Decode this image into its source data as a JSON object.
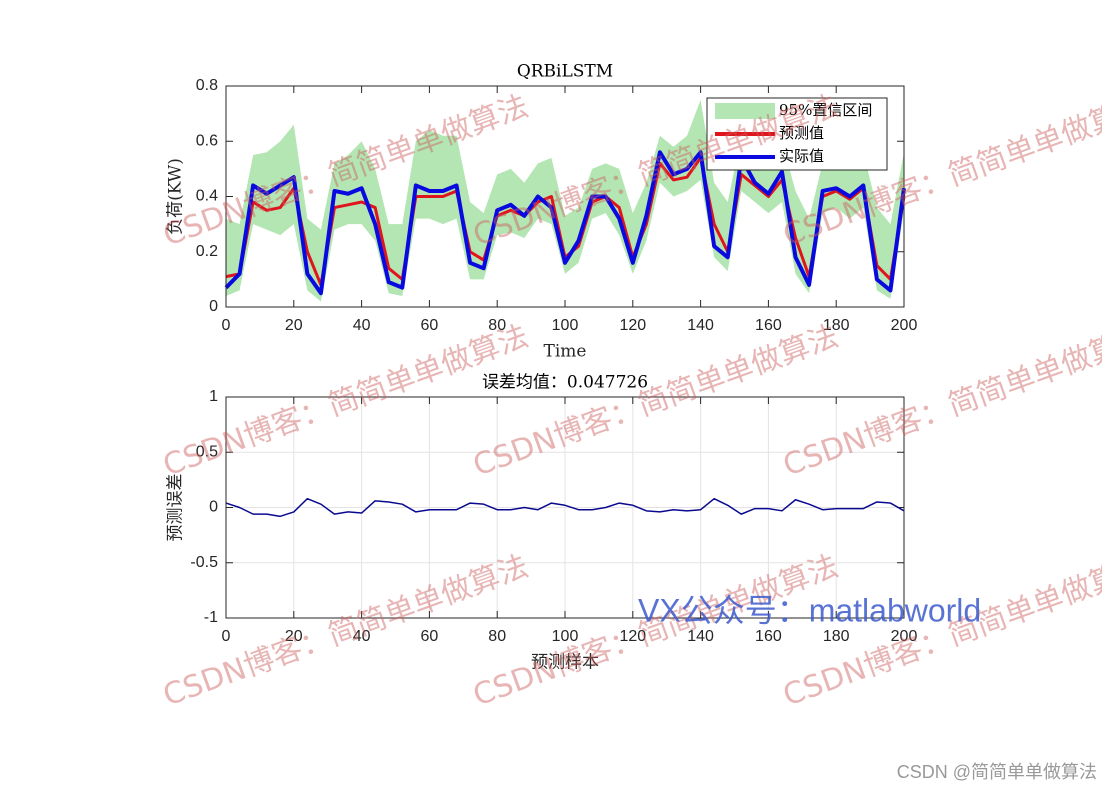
{
  "watermarks": {
    "blog": "CSDN博客：简简单单做算法",
    "wechat": "VX公众号：matlabworld",
    "footer": "CSDN @简简单单做算法"
  },
  "chart_data": [
    {
      "type": "line",
      "title": "QRBiLSTM",
      "xlabel": "Time",
      "ylabel": "负荷(KW)",
      "x": [
        0,
        4,
        8,
        12,
        16,
        20,
        24,
        28,
        32,
        36,
        40,
        44,
        48,
        52,
        56,
        60,
        64,
        68,
        72,
        76,
        80,
        84,
        88,
        92,
        96,
        100,
        104,
        108,
        112,
        116,
        120,
        124,
        128,
        132,
        136,
        140,
        144,
        148,
        152,
        156,
        160,
        164,
        168,
        172,
        176,
        180,
        184,
        188,
        192,
        196,
        200
      ],
      "xlim": [
        0,
        200
      ],
      "xticks": [
        0,
        20,
        40,
        60,
        80,
        100,
        120,
        140,
        160,
        180,
        200
      ],
      "ylim": [
        0,
        0.8
      ],
      "yticks": [
        0,
        0.2,
        0.4,
        0.6,
        0.8
      ],
      "grid": false,
      "legend": "upper right",
      "series": [
        {
          "name": "95%置信区间",
          "type": "band",
          "color": "#b3e6b3",
          "upper": [
            0.32,
            0.3,
            0.55,
            0.56,
            0.6,
            0.66,
            0.32,
            0.28,
            0.52,
            0.55,
            0.6,
            0.5,
            0.3,
            0.3,
            0.6,
            0.64,
            0.62,
            0.62,
            0.38,
            0.34,
            0.48,
            0.5,
            0.45,
            0.52,
            0.54,
            0.33,
            0.36,
            0.5,
            0.52,
            0.5,
            0.34,
            0.45,
            0.62,
            0.58,
            0.62,
            0.75,
            0.45,
            0.38,
            0.62,
            0.56,
            0.54,
            0.6,
            0.42,
            0.32,
            0.52,
            0.55,
            0.5,
            0.56,
            0.36,
            0.3,
            0.56
          ],
          "lower": [
            0.04,
            0.06,
            0.3,
            0.28,
            0.26,
            0.3,
            0.06,
            0.02,
            0.28,
            0.3,
            0.3,
            0.24,
            0.05,
            0.04,
            0.32,
            0.32,
            0.3,
            0.32,
            0.1,
            0.1,
            0.26,
            0.27,
            0.25,
            0.32,
            0.3,
            0.12,
            0.16,
            0.32,
            0.34,
            0.26,
            0.12,
            0.24,
            0.45,
            0.4,
            0.42,
            0.46,
            0.18,
            0.13,
            0.42,
            0.38,
            0.34,
            0.38,
            0.12,
            0.05,
            0.34,
            0.36,
            0.32,
            0.36,
            0.06,
            0.03,
            0.35
          ]
        },
        {
          "name": "预测值",
          "color": "#e0141c",
          "values": [
            0.11,
            0.12,
            0.38,
            0.35,
            0.36,
            0.43,
            0.2,
            0.08,
            0.36,
            0.37,
            0.38,
            0.36,
            0.14,
            0.1,
            0.4,
            0.4,
            0.4,
            0.42,
            0.2,
            0.17,
            0.33,
            0.35,
            0.33,
            0.38,
            0.4,
            0.18,
            0.22,
            0.38,
            0.4,
            0.36,
            0.18,
            0.3,
            0.52,
            0.46,
            0.47,
            0.54,
            0.3,
            0.2,
            0.48,
            0.44,
            0.4,
            0.46,
            0.25,
            0.11,
            0.4,
            0.42,
            0.39,
            0.43,
            0.15,
            0.1,
            0.4
          ]
        },
        {
          "name": "实际值",
          "color": "#0a0ae0",
          "values": [
            0.07,
            0.12,
            0.44,
            0.41,
            0.44,
            0.47,
            0.12,
            0.05,
            0.42,
            0.41,
            0.43,
            0.3,
            0.09,
            0.07,
            0.44,
            0.42,
            0.42,
            0.44,
            0.16,
            0.14,
            0.35,
            0.37,
            0.33,
            0.4,
            0.36,
            0.16,
            0.24,
            0.4,
            0.4,
            0.32,
            0.16,
            0.33,
            0.56,
            0.48,
            0.5,
            0.56,
            0.22,
            0.18,
            0.54,
            0.45,
            0.41,
            0.49,
            0.18,
            0.08,
            0.42,
            0.43,
            0.4,
            0.44,
            0.1,
            0.06,
            0.43
          ]
        }
      ]
    },
    {
      "type": "line",
      "title": "误差均值：0.047726",
      "xlabel": "预测样本",
      "ylabel": "预测误差",
      "x": [
        0,
        4,
        8,
        12,
        16,
        20,
        24,
        28,
        32,
        36,
        40,
        44,
        48,
        52,
        56,
        60,
        64,
        68,
        72,
        76,
        80,
        84,
        88,
        92,
        96,
        100,
        104,
        108,
        112,
        116,
        120,
        124,
        128,
        132,
        136,
        140,
        144,
        148,
        152,
        156,
        160,
        164,
        168,
        172,
        176,
        180,
        184,
        188,
        192,
        196,
        200
      ],
      "xlim": [
        0,
        200
      ],
      "xticks": [
        0,
        20,
        40,
        60,
        80,
        100,
        120,
        140,
        160,
        180,
        200
      ],
      "ylim": [
        -1,
        1
      ],
      "yticks": [
        -1,
        -0.5,
        0,
        0.5,
        1
      ],
      "grid": true,
      "series": [
        {
          "color": "#0a0a90",
          "values": [
            0.04,
            0.0,
            -0.06,
            -0.06,
            -0.08,
            -0.04,
            0.08,
            0.03,
            -0.06,
            -0.04,
            -0.05,
            0.06,
            0.05,
            0.03,
            -0.04,
            -0.02,
            -0.02,
            -0.02,
            0.04,
            0.03,
            -0.02,
            -0.02,
            0,
            -0.02,
            0.04,
            0.02,
            -0.02,
            -0.02,
            0,
            0.04,
            0.02,
            -0.03,
            -0.04,
            -0.02,
            -0.03,
            -0.02,
            0.08,
            0.02,
            -0.06,
            -0.01,
            -0.01,
            -0.03,
            0.07,
            0.03,
            -0.02,
            -0.01,
            -0.01,
            -0.01,
            0.05,
            0.04,
            -0.03
          ]
        }
      ]
    }
  ]
}
